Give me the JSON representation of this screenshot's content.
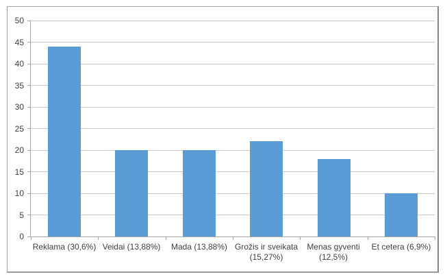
{
  "chart_data": {
    "type": "bar",
    "title": "",
    "xlabel": "",
    "ylabel": "",
    "categories": [
      "Reklama (30,6%)",
      "Veidai (13,88%)",
      "Mada (13,88%)",
      "Grožis ir sveikata (15,27%)",
      "Menas gyventi (12,5%)",
      "Et cetera (6,9%)"
    ],
    "category_lines": [
      [
        "Reklama (30,6%)"
      ],
      [
        "Veidai (13,88%)"
      ],
      [
        "Mada (13,88%)"
      ],
      [
        "Grožis ir sveikata",
        "(15,27%)"
      ],
      [
        "Menas gyventi",
        "(12,5%)"
      ],
      [
        "Et cetera (6,9%)"
      ]
    ],
    "values": [
      44,
      20,
      20,
      22,
      18,
      10
    ],
    "ylim": [
      0,
      50
    ],
    "yticks": [
      0,
      5,
      10,
      15,
      20,
      25,
      30,
      35,
      40,
      45,
      50
    ],
    "grid": true,
    "legend": false
  },
  "style": {
    "bar_color": "#5b9bd5",
    "gridline_color": "#cbcbcb",
    "axis_color": "#a6a6a6",
    "text_color": "#404040"
  }
}
